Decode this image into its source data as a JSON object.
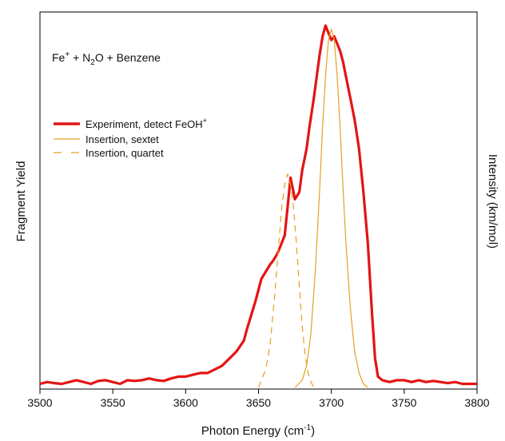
{
  "chart_data": {
    "type": "line",
    "title": "",
    "annotation": {
      "main": "Fe",
      "sup1": "+",
      "mid": " + N",
      "sub": "2",
      "end": "O + Benzene"
    },
    "xlabel": {
      "main": "Photon Energy (cm",
      "sup": "-1",
      "end": ")"
    },
    "ylabel_left": "Fragment Yield",
    "ylabel_right": "Intensity (km/mol)",
    "xlim": [
      3500,
      3800
    ],
    "ylim": [
      0,
      1.0
    ],
    "x_ticks": [
      "3500",
      "3550",
      "3600",
      "3650",
      "3700",
      "3750",
      "3800"
    ],
    "x_tick_values": [
      3500,
      3550,
      3600,
      3650,
      3700,
      3750,
      3800
    ],
    "grid": false,
    "legend_placement": "upper-left",
    "colors": {
      "experiment": "#e41414",
      "sextet": "#e6a020",
      "quartet": "#e6a020"
    },
    "series": [
      {
        "name": "Experiment, detect FeOH",
        "name_sup": "+",
        "style": "solid-thick",
        "x": [
          3500,
          3505,
          3510,
          3515,
          3520,
          3525,
          3530,
          3535,
          3540,
          3545,
          3550,
          3555,
          3560,
          3565,
          3570,
          3575,
          3580,
          3585,
          3590,
          3595,
          3600,
          3605,
          3610,
          3615,
          3620,
          3625,
          3630,
          3635,
          3640,
          3642,
          3645,
          3648,
          3650,
          3652,
          3655,
          3658,
          3660,
          3663,
          3665,
          3668,
          3670,
          3672,
          3675,
          3678,
          3680,
          3683,
          3685,
          3688,
          3690,
          3692,
          3694,
          3696,
          3698,
          3700,
          3702,
          3704,
          3706,
          3708,
          3710,
          3713,
          3716,
          3719,
          3722,
          3725,
          3728,
          3730,
          3732,
          3735,
          3740,
          3745,
          3750,
          3755,
          3760,
          3765,
          3770,
          3775,
          3780,
          3785,
          3790,
          3795,
          3800
        ],
        "y": [
          0.01,
          0.015,
          0.012,
          0.01,
          0.015,
          0.02,
          0.015,
          0.01,
          0.018,
          0.02,
          0.015,
          0.01,
          0.02,
          0.018,
          0.02,
          0.025,
          0.02,
          0.018,
          0.025,
          0.03,
          0.03,
          0.035,
          0.04,
          0.04,
          0.05,
          0.06,
          0.08,
          0.1,
          0.13,
          0.16,
          0.2,
          0.24,
          0.27,
          0.3,
          0.32,
          0.34,
          0.35,
          0.37,
          0.39,
          0.42,
          0.5,
          0.58,
          0.52,
          0.54,
          0.6,
          0.66,
          0.72,
          0.8,
          0.86,
          0.92,
          0.97,
          1.0,
          0.98,
          0.96,
          0.97,
          0.95,
          0.93,
          0.9,
          0.86,
          0.8,
          0.74,
          0.66,
          0.54,
          0.4,
          0.2,
          0.08,
          0.03,
          0.02,
          0.015,
          0.02,
          0.02,
          0.015,
          0.02,
          0.015,
          0.018,
          0.015,
          0.012,
          0.015,
          0.01,
          0.01,
          0.01
        ]
      },
      {
        "name": "Insertion, sextet",
        "style": "solid-thin",
        "x": [
          3675,
          3680,
          3683,
          3686,
          3689,
          3692,
          3694,
          3696,
          3698,
          3700,
          3702,
          3704,
          3706,
          3708,
          3710,
          3713,
          3716,
          3719,
          3722,
          3725
        ],
        "y": [
          0.0,
          0.02,
          0.06,
          0.15,
          0.32,
          0.55,
          0.72,
          0.86,
          0.96,
          0.99,
          0.96,
          0.86,
          0.72,
          0.55,
          0.4,
          0.22,
          0.1,
          0.04,
          0.01,
          0.0
        ]
      },
      {
        "name": "Insertion, quartet",
        "style": "dashed",
        "x": [
          3650,
          3655,
          3658,
          3661,
          3664,
          3666,
          3668,
          3670,
          3672,
          3674,
          3676,
          3678,
          3680,
          3682,
          3684,
          3686,
          3688
        ],
        "y": [
          0.0,
          0.05,
          0.12,
          0.25,
          0.4,
          0.5,
          0.56,
          0.59,
          0.56,
          0.5,
          0.4,
          0.28,
          0.17,
          0.09,
          0.04,
          0.015,
          0.0
        ]
      }
    ]
  }
}
